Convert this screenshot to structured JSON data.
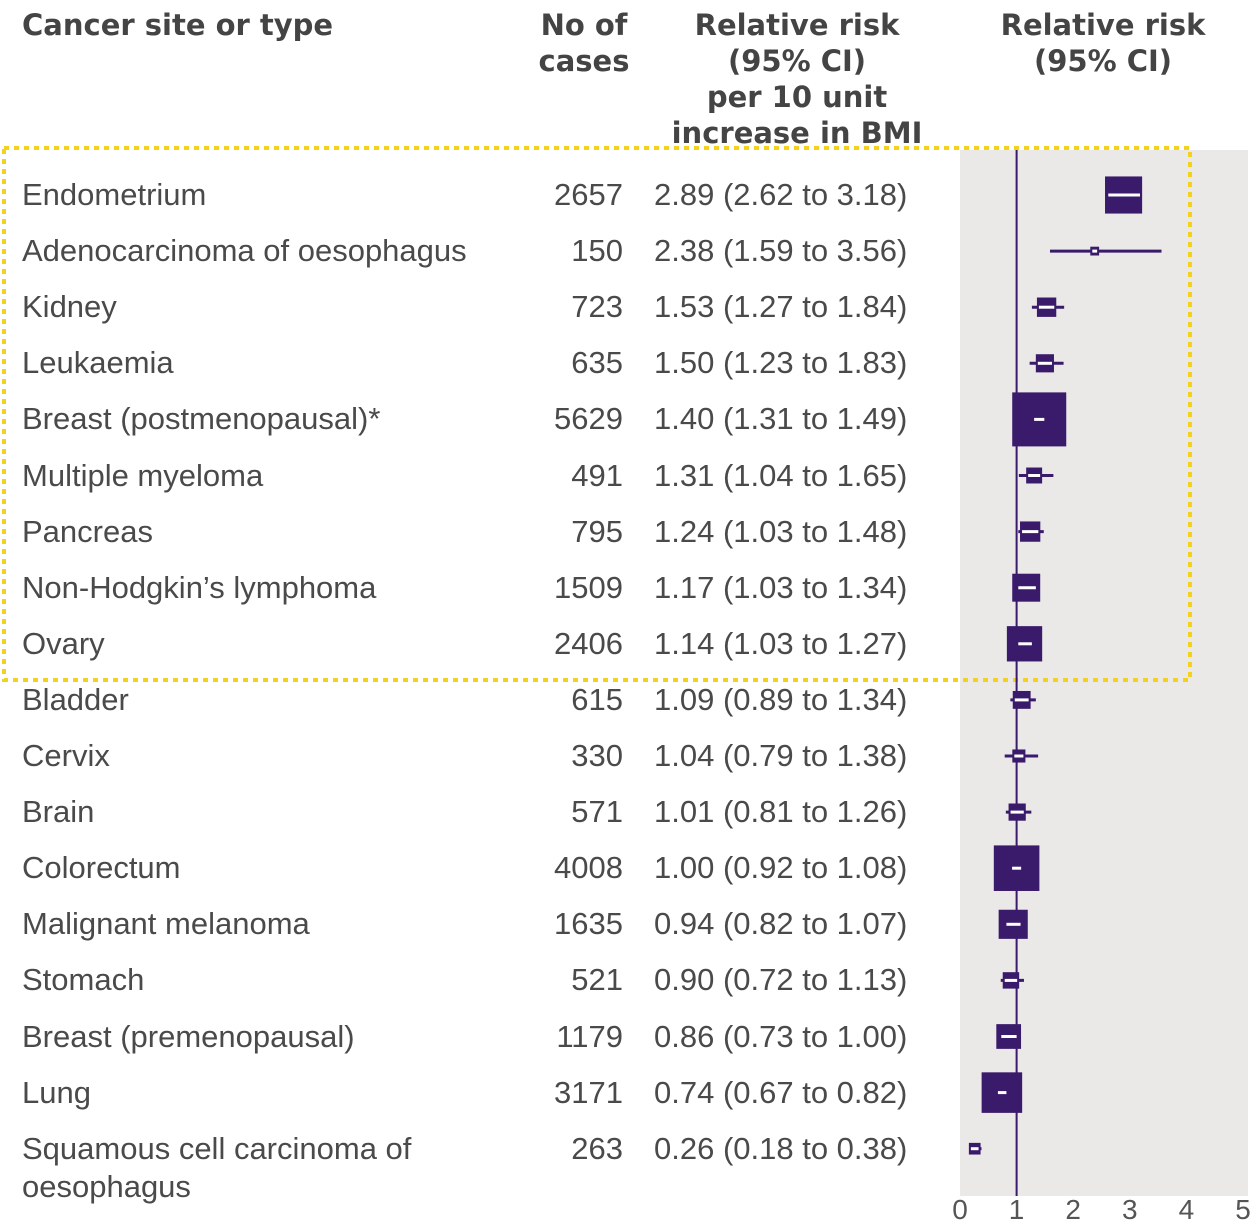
{
  "chart_data": {
    "type": "forest",
    "column_headers": [
      [
        "Cancer site or type"
      ],
      [
        "No of",
        "cases"
      ],
      [
        "Relative risk",
        "(95% CI)",
        "per 10 unit",
        "increase in BMI"
      ],
      [
        "Relative risk",
        "(95% CI)"
      ]
    ],
    "categories": [
      "Endometrium",
      "Adenocarcinoma of oesophagus",
      "Kidney",
      "Leukaemia",
      "Breast (postmenopausal)*",
      "Multiple myeloma",
      "Pancreas",
      "Non-Hodgkin’s lymphoma",
      "Ovary",
      "Bladder",
      "Cervix",
      "Brain",
      "Colorectum",
      "Malignant melanoma",
      "Stomach",
      "Breast (premenopausal)",
      "Lung",
      "Squamous cell carcinoma of oesophagus"
    ],
    "cases": [
      2657,
      150,
      723,
      635,
      5629,
      491,
      795,
      1509,
      2406,
      615,
      330,
      571,
      4008,
      1635,
      521,
      1179,
      3171,
      263
    ],
    "values": [
      2.89,
      2.38,
      1.53,
      1.5,
      1.4,
      1.31,
      1.24,
      1.17,
      1.14,
      1.09,
      1.04,
      1.01,
      1.0,
      0.94,
      0.9,
      0.86,
      0.74,
      0.26
    ],
    "lower": [
      2.62,
      1.59,
      1.27,
      1.23,
      1.31,
      1.04,
      1.03,
      1.03,
      1.03,
      0.89,
      0.79,
      0.81,
      0.92,
      0.82,
      0.72,
      0.73,
      0.67,
      0.18
    ],
    "upper": [
      3.18,
      3.56,
      1.84,
      1.83,
      1.49,
      1.65,
      1.48,
      1.34,
      1.27,
      1.34,
      1.38,
      1.26,
      1.08,
      1.07,
      1.13,
      1.0,
      0.82,
      0.38
    ],
    "value_labels": [
      "2.89 (2.62 to 3.18)",
      "2.38 (1.59 to 3.56)",
      "1.53 (1.27 to 1.84)",
      "1.50 (1.23 to 1.83)",
      "1.40 (1.31 to 1.49)",
      "1.31 (1.04 to 1.65)",
      "1.24 (1.03 to 1.48)",
      "1.17 (1.03 to 1.34)",
      "1.14 (1.03 to 1.27)",
      "1.09 (0.89 to 1.34)",
      "1.04 (0.79 to 1.38)",
      "1.01 (0.81 to 1.26)",
      "1.00 (0.92 to 1.08)",
      "0.94 (0.82 to 1.07)",
      "0.90 (0.72 to 1.13)",
      "0.86 (0.73 to 1.00)",
      "0.74 (0.67 to 0.82)",
      "0.26 (0.18 to 0.38)"
    ],
    "xlim": [
      0,
      5
    ],
    "xticks": [
      0,
      1,
      2,
      3,
      4,
      5
    ],
    "reference": 1,
    "color": "#3a1a6a"
  }
}
